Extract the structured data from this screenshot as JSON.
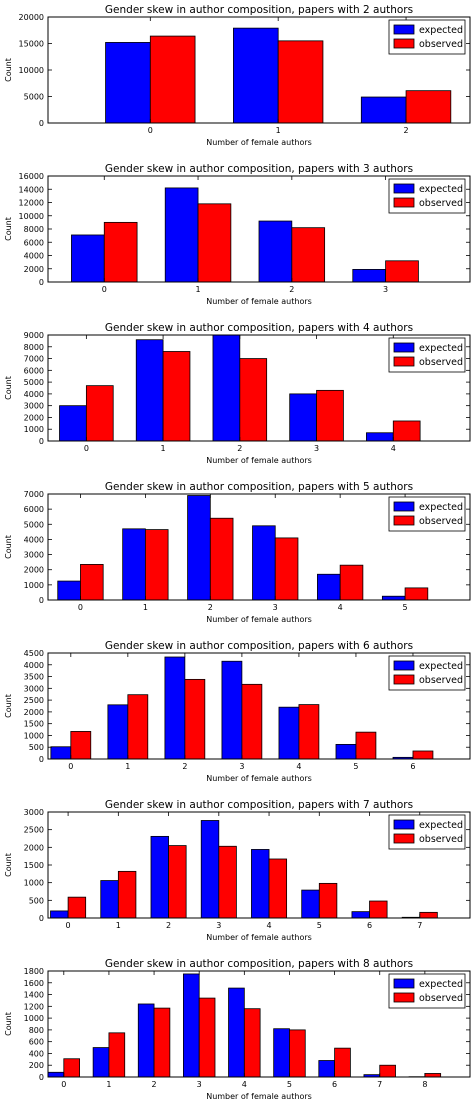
{
  "legend_labels": [
    "expected",
    "observed"
  ],
  "colors": {
    "expected": "#0000ff",
    "observed": "#ff0000"
  },
  "chart_data": [
    {
      "type": "bar",
      "title": "Gender skew in author composition, papers with 2 authors",
      "xlabel": "Number of female authors",
      "ylabel": "Count",
      "categories": [
        "0",
        "1",
        "2"
      ],
      "xlim": [
        -0.8,
        2.5
      ],
      "ylim": [
        0,
        20000
      ],
      "yticks": [
        0,
        5000,
        10000,
        15000,
        20000
      ],
      "grid": false,
      "legend_position": "top-right",
      "series": [
        {
          "name": "expected",
          "values": [
            15200,
            17900,
            4900
          ]
        },
        {
          "name": "observed",
          "values": [
            16400,
            15500,
            6100
          ]
        }
      ]
    },
    {
      "type": "bar",
      "title": "Gender skew in author composition, papers with 3 authors",
      "xlabel": "Number of female authors",
      "ylabel": "Count",
      "categories": [
        "0",
        "1",
        "2",
        "3"
      ],
      "xlim": [
        -0.6,
        3.9
      ],
      "ylim": [
        0,
        16000
      ],
      "yticks": [
        0,
        2000,
        4000,
        6000,
        8000,
        10000,
        12000,
        14000,
        16000
      ],
      "grid": false,
      "legend_position": "top-right",
      "series": [
        {
          "name": "expected",
          "values": [
            7100,
            14200,
            9200,
            1900
          ]
        },
        {
          "name": "observed",
          "values": [
            9000,
            11800,
            8200,
            3200
          ]
        }
      ]
    },
    {
      "type": "bar",
      "title": "Gender skew in author composition, papers with 4 authors",
      "xlabel": "Number of female authors",
      "ylabel": "Count",
      "categories": [
        "0",
        "1",
        "2",
        "3",
        "4"
      ],
      "xlim": [
        -0.5,
        5.0
      ],
      "ylim": [
        0,
        9000
      ],
      "yticks": [
        0,
        1000,
        2000,
        3000,
        4000,
        5000,
        6000,
        7000,
        8000,
        9000
      ],
      "grid": false,
      "legend_position": "top-right",
      "series": [
        {
          "name": "expected",
          "values": [
            3000,
            8600,
            9000,
            4000,
            700
          ]
        },
        {
          "name": "observed",
          "values": [
            4700,
            7600,
            7000,
            4300,
            1700
          ]
        }
      ]
    },
    {
      "type": "bar",
      "title": "Gender skew in author composition, papers with 5 authors",
      "xlabel": "Number of female authors",
      "ylabel": "Count",
      "categories": [
        "0",
        "1",
        "2",
        "3",
        "4",
        "5"
      ],
      "xlim": [
        -0.5,
        6.0
      ],
      "ylim": [
        0,
        7000
      ],
      "yticks": [
        0,
        1000,
        2000,
        3000,
        4000,
        5000,
        6000,
        7000
      ],
      "grid": false,
      "legend_position": "top-right",
      "series": [
        {
          "name": "expected",
          "values": [
            1250,
            4700,
            6900,
            4900,
            1700,
            250
          ]
        },
        {
          "name": "observed",
          "values": [
            2350,
            4650,
            5400,
            4100,
            2300,
            800
          ]
        }
      ]
    },
    {
      "type": "bar",
      "title": "Gender skew in author composition, papers with 6 authors",
      "xlabel": "Number of female authors",
      "ylabel": "Count",
      "categories": [
        "0",
        "1",
        "2",
        "3",
        "4",
        "5",
        "6"
      ],
      "xlim": [
        -0.4,
        7.0
      ],
      "ylim": [
        0,
        4500
      ],
      "yticks": [
        0,
        500,
        1000,
        1500,
        2000,
        2500,
        3000,
        3500,
        4000,
        4500
      ],
      "grid": false,
      "legend_position": "top-right",
      "series": [
        {
          "name": "expected",
          "values": [
            520,
            2300,
            4330,
            4150,
            2200,
            620,
            70
          ]
        },
        {
          "name": "observed",
          "values": [
            1170,
            2730,
            3380,
            3170,
            2310,
            1140,
            340
          ]
        }
      ]
    },
    {
      "type": "bar",
      "title": "Gender skew in author composition, papers with 7 authors",
      "xlabel": "Number of female authors",
      "ylabel": "Count",
      "categories": [
        "0",
        "1",
        "2",
        "3",
        "4",
        "5",
        "6",
        "7"
      ],
      "xlim": [
        -0.4,
        8.0
      ],
      "ylim": [
        0,
        3000
      ],
      "yticks": [
        0,
        500,
        1000,
        1500,
        2000,
        2500,
        3000
      ],
      "grid": false,
      "legend_position": "top-right",
      "series": [
        {
          "name": "expected",
          "values": [
            200,
            1060,
            2310,
            2760,
            1940,
            790,
            180,
            20
          ]
        },
        {
          "name": "observed",
          "values": [
            590,
            1320,
            2050,
            2030,
            1670,
            980,
            480,
            160
          ]
        }
      ]
    },
    {
      "type": "bar",
      "title": "Gender skew in author composition, papers with 8 authors",
      "xlabel": "Number of female authors",
      "ylabel": "Count",
      "categories": [
        "0",
        "1",
        "2",
        "3",
        "4",
        "5",
        "6",
        "7",
        "8"
      ],
      "xlim": [
        -0.35,
        9.0
      ],
      "ylim": [
        0,
        1800
      ],
      "yticks": [
        0,
        200,
        400,
        600,
        800,
        1000,
        1200,
        1400,
        1600,
        1800
      ],
      "grid": false,
      "legend_position": "top-right",
      "series": [
        {
          "name": "expected",
          "values": [
            80,
            500,
            1240,
            1750,
            1510,
            820,
            280,
            40,
            5
          ]
        },
        {
          "name": "observed",
          "values": [
            310,
            750,
            1170,
            1340,
            1160,
            800,
            490,
            200,
            60
          ]
        }
      ]
    }
  ]
}
